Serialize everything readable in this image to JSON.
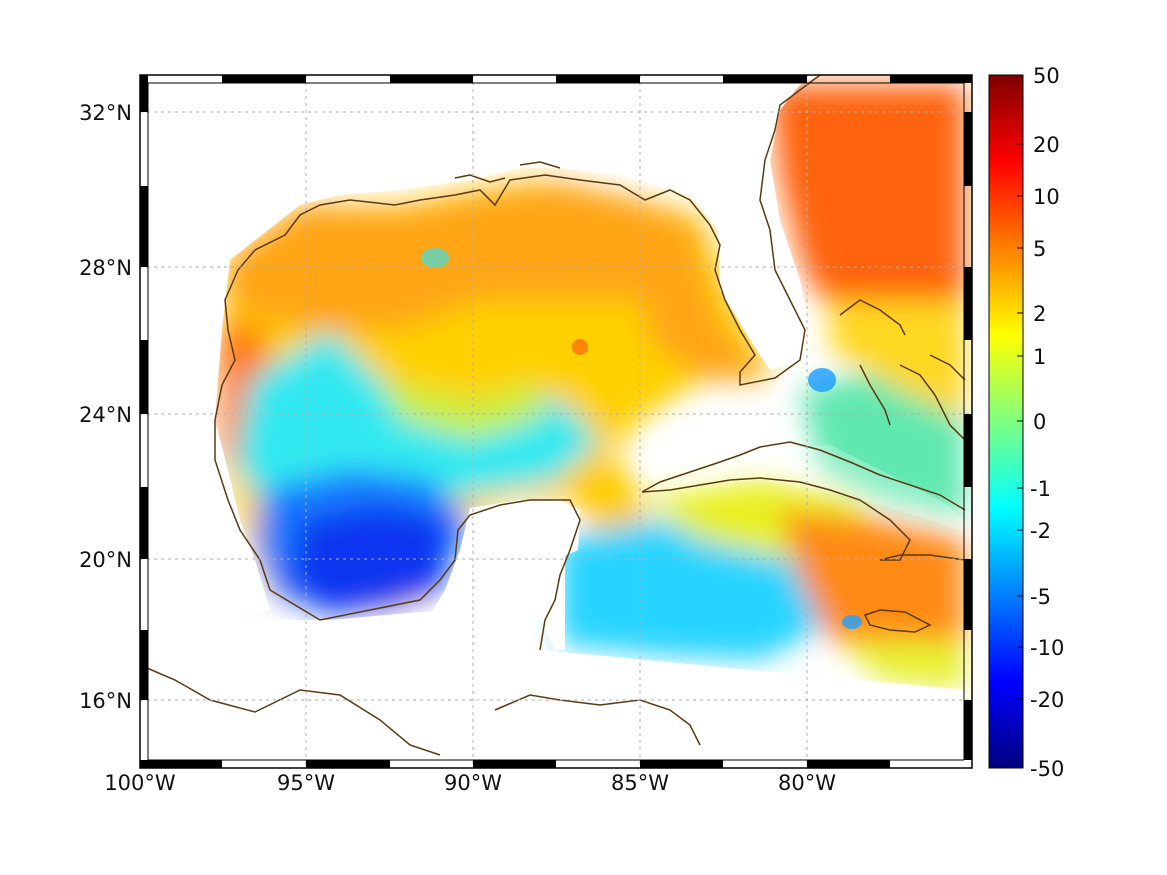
{
  "map": {
    "type": "heatmap-map",
    "region": "Gulf of Mexico and Caribbean",
    "lon_ticks": [
      "100°W",
      "95°W",
      "90°W",
      "85°W",
      "80°W"
    ],
    "lat_ticks": [
      "32°N",
      "28°N",
      "24°N",
      "20°N",
      "16°N"
    ],
    "lon_range": [
      -100,
      -75
    ],
    "lat_range": [
      14.3,
      33.0
    ],
    "grid": true,
    "coastline_color": "#5a3a10"
  },
  "colorbar": {
    "ticks": [
      "50",
      "20",
      "10",
      "5",
      "2",
      "1",
      "0",
      "-1",
      "-2",
      "-5",
      "-10",
      "-20",
      "-50"
    ],
    "colormap": "jet",
    "colors": [
      "#7f0000",
      "#ff0000",
      "#ff7f00",
      "#ffff00",
      "#7fff7f",
      "#00ffff",
      "#007fff",
      "#0000ff",
      "#00007f"
    ]
  },
  "field_colors": {
    "orange": "#ff9a1a",
    "red_orange": "#ff6a10",
    "yellow": "#ffe500",
    "lime": "#b8ff40",
    "cyan": "#20e6ff",
    "light_blue": "#18b8ff",
    "blue": "#0a46ff",
    "deep_blue": "#0a22e0"
  }
}
